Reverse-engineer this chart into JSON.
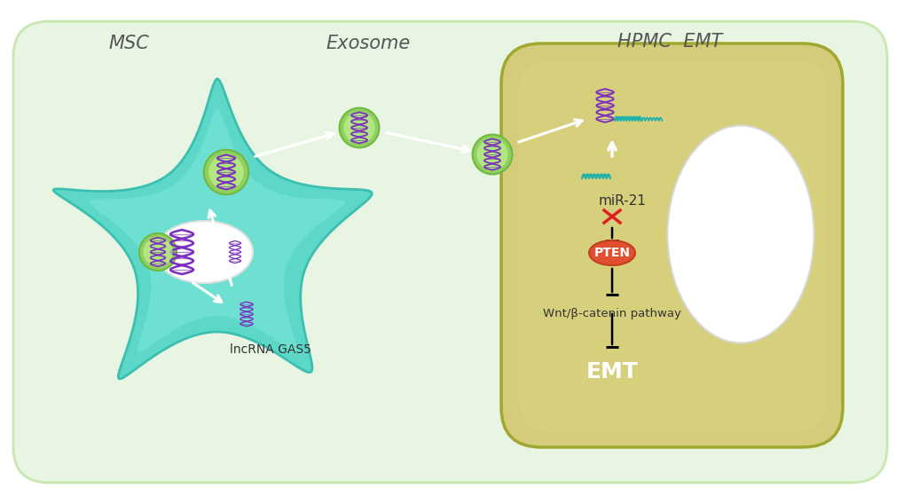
{
  "bg_color": "#e8f5e2",
  "bg_roundness": 0.05,
  "msc_cell_color": "#5dd8c8",
  "msc_cell_edge": "#4bbfb0",
  "hpmc_cell_color": "#d4cc7a",
  "hpmc_cell_edge": "#b5b050",
  "nucleus_color": "#f0f0f0",
  "exosome_outer": "#a8e880",
  "exosome_inner": "#c8f5a0",
  "label_msc": "MSC",
  "label_exosome": "Exosome",
  "label_hpmc": "HPMC  EMT",
  "label_lncrna": "lncRNA GAS5",
  "label_mir21": "miR-21",
  "label_pten": "PTEN",
  "label_wnt": "Wnt/β-catenin pathway",
  "label_emt": "EMT",
  "dna_color": "#7B2FBE",
  "mirna_color": "#20B2AA",
  "pten_color": "#e05030",
  "pten_text_color": "#ffffff",
  "arrow_white": "#ffffff",
  "arrow_black": "#1a1a1a",
  "cross_color": "#e02020",
  "text_color_dark": "#333333",
  "text_color_light": "#ffffff"
}
